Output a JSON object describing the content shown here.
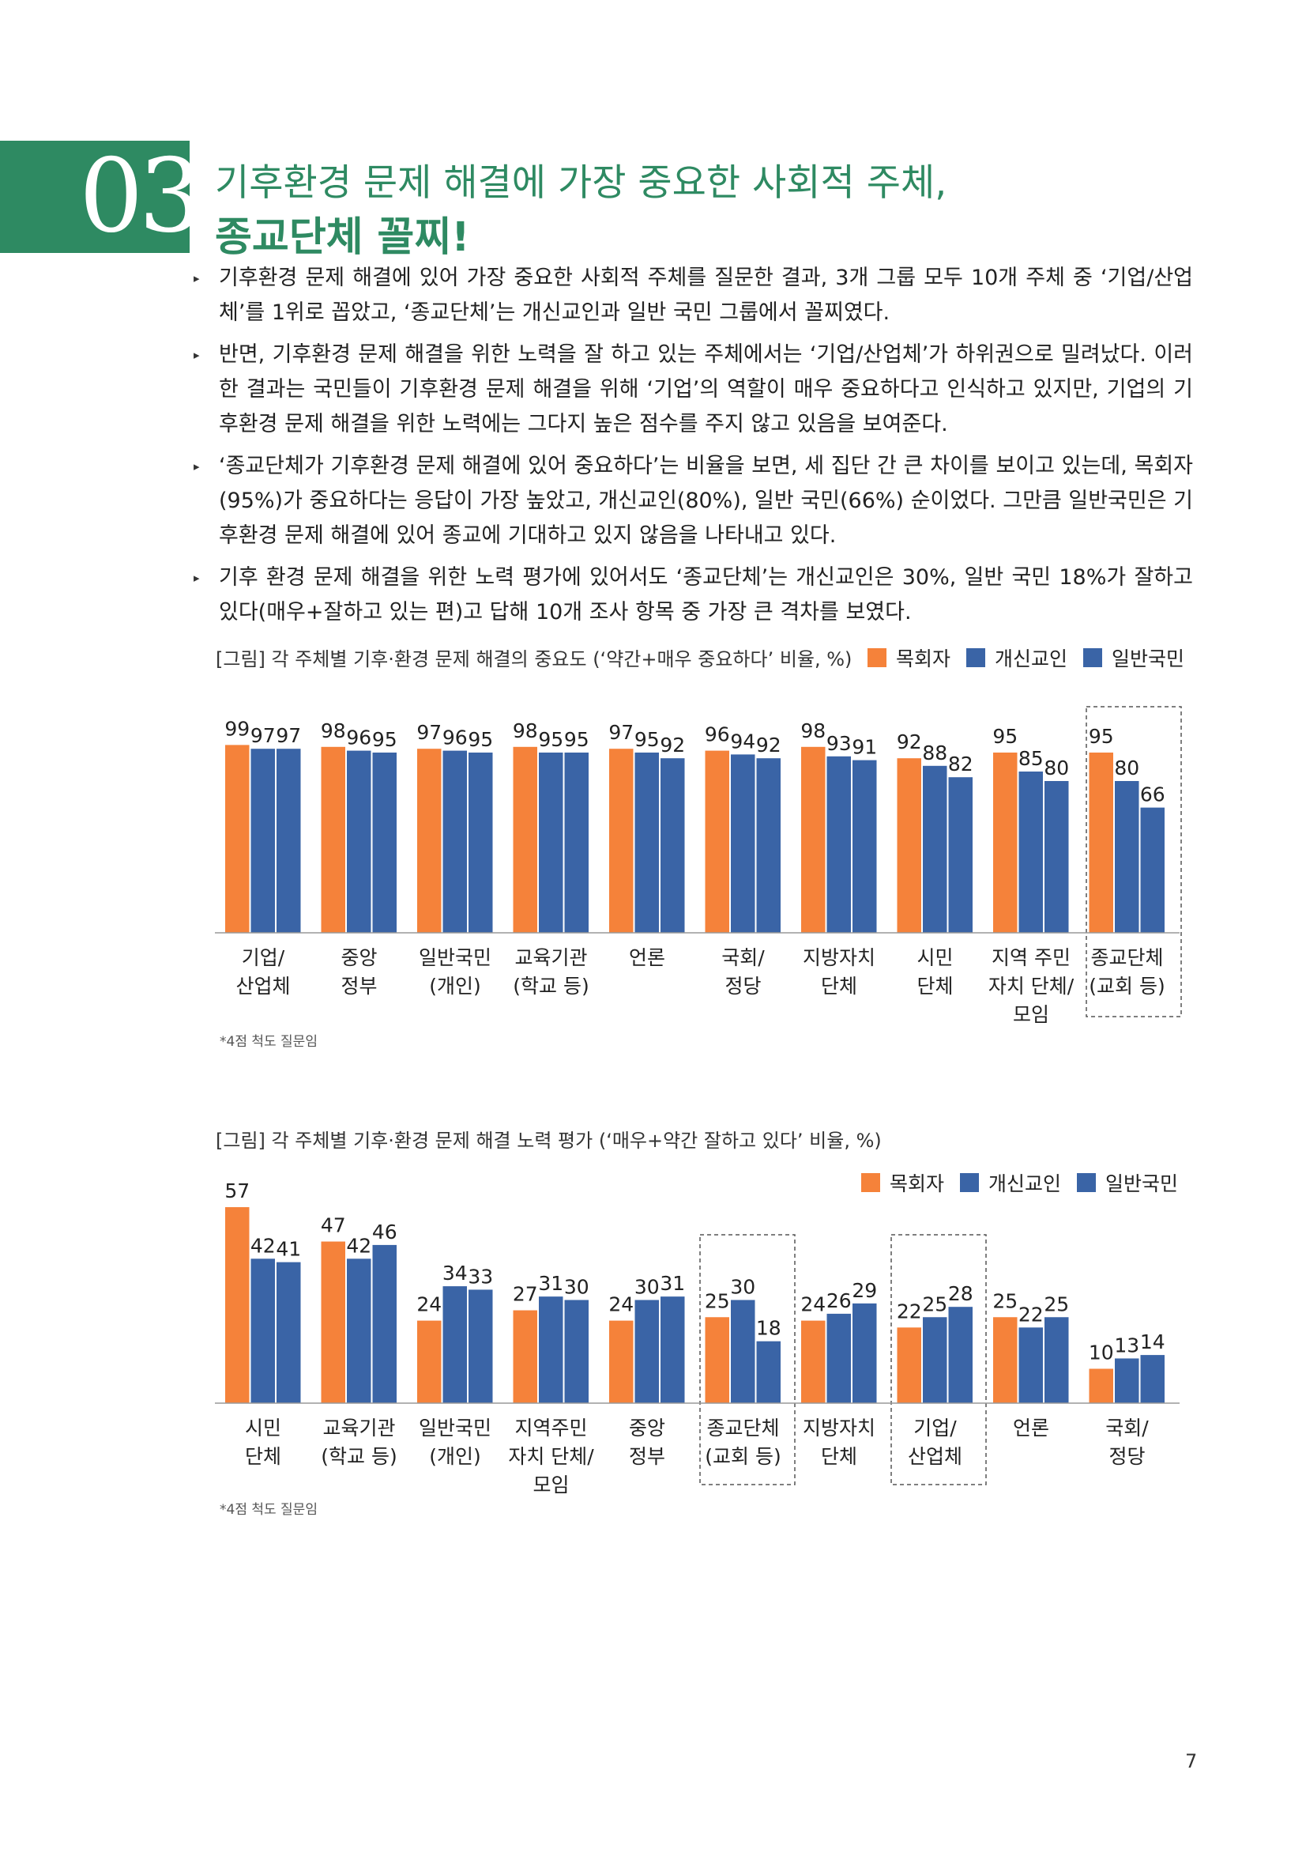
{
  "section": {
    "number": "03",
    "heading_line1": "기후환경 문제 해결에 가장 중요한 사회적 주체,",
    "heading_line2": "종교단체 꼴찌!"
  },
  "bullets": [
    "기후환경 문제 해결에 있어 가장 중요한 사회적 주체를 질문한 결과, 3개 그룹 모두 10개 주체 중 ‘기업/산업체’를 1위로 꼽았고, ‘종교단체’는 개신교인과 일반 국민 그룹에서 꼴찌였다.",
    "반면, 기후환경 문제 해결을 위한 노력을 잘 하고 있는 주체에서는 ‘기업/산업체’가 하위권으로 밀려났다. 이러한 결과는 국민들이 기후환경 문제 해결을 위해 ‘기업’의 역할이 매우 중요하다고 인식하고 있지만, 기업의 기후환경 문제 해결을 위한 노력에는 그다지 높은 점수를 주지 않고 있음을 보여준다.",
    "‘종교단체가 기후환경 문제 해결에 있어 중요하다’는 비율을 보면, 세 집단 간 큰 차이를 보이고 있는데, 목회자(95%)가 중요하다는 응답이 가장 높았고, 개신교인(80%), 일반 국민(66%) 순이었다. 그만큼 일반국민은 기후환경 문제 해결에 있어 종교에 기대하고 있지 않음을 나타내고 있다.",
    "기후 환경 문제 해결을 위한 노력 평가에 있어서도 ‘종교단체’는 개신교인은 30%, 일반 국민 18%가 잘하고 있다(매우+잘하고 있는 편)고 답해 10개 조사 항목 중 가장 큰 격차를 보였다."
  ],
  "legend": {
    "labels": [
      "목회자",
      "개신교인",
      "일반국민"
    ],
    "colors": [
      "#f5823a",
      "#3a64a6",
      "#3a64a6"
    ]
  },
  "chart_data": [
    {
      "type": "bar",
      "title": "[그림] 각 주체별 기후·환경 문제 해결의 중요도 (‘약간+매우 중요하다’ 비율, %)",
      "categories": [
        [
          "기업/",
          "산업체"
        ],
        [
          "중앙",
          "정부"
        ],
        [
          "일반국민",
          "(개인)"
        ],
        [
          "교육기관",
          "(학교 등)"
        ],
        [
          "언론"
        ],
        [
          "국회/",
          "정당"
        ],
        [
          "지방자치",
          "단체"
        ],
        [
          "시민",
          "단체"
        ],
        [
          "지역 주민",
          "자치 단체/",
          "모임"
        ],
        [
          "종교단체",
          "(교회 등)"
        ]
      ],
      "series": [
        {
          "name": "목회자",
          "values": [
            99,
            98,
            97,
            98,
            97,
            96,
            98,
            92,
            95,
            95
          ]
        },
        {
          "name": "개신교인",
          "values": [
            97,
            96,
            96,
            95,
            95,
            94,
            93,
            88,
            85,
            80
          ]
        },
        {
          "name": "일반국민",
          "values": [
            97,
            95,
            95,
            95,
            92,
            92,
            91,
            82,
            80,
            66
          ]
        }
      ],
      "ylim": [
        0,
        100
      ],
      "highlight_index": 9,
      "note": "*4점 척도 질문임"
    },
    {
      "type": "bar",
      "title": "[그림] 각 주체별 기후·환경 문제 해결 노력 평가 (‘매우+약간 잘하고 있다’ 비율, %)",
      "categories": [
        [
          "시민",
          "단체"
        ],
        [
          "교육기관",
          "(학교 등)"
        ],
        [
          "일반국민",
          "(개인)"
        ],
        [
          "지역주민",
          "자치 단체/",
          "모임"
        ],
        [
          "중앙",
          "정부"
        ],
        [
          "종교단체",
          "(교회 등)"
        ],
        [
          "지방자치",
          "단체"
        ],
        [
          "기업/",
          "산업체"
        ],
        [
          "언론"
        ],
        [
          "국회/",
          "정당"
        ]
      ],
      "series": [
        {
          "name": "목회자",
          "values": [
            57,
            47,
            24,
            27,
            24,
            25,
            24,
            22,
            25,
            10
          ]
        },
        {
          "name": "개신교인",
          "values": [
            42,
            42,
            34,
            31,
            30,
            30,
            26,
            25,
            22,
            13
          ]
        },
        {
          "name": "일반국민",
          "values": [
            41,
            46,
            33,
            30,
            31,
            18,
            29,
            28,
            25,
            14
          ]
        }
      ],
      "ylim": [
        0,
        57
      ],
      "highlight_indices": [
        5,
        7
      ],
      "note": "*4점 척도 질문임"
    }
  ],
  "page_number": "7"
}
